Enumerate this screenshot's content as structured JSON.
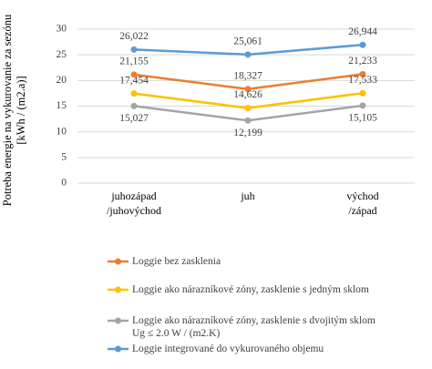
{
  "chart_data": {
    "type": "line",
    "y_axis_label": "Potreba energie na vykurovanie za sezónu\n[kWh / (m2.a)]",
    "categories": [
      "juhozápad\n/juhovýchod",
      "juh",
      "východ\n/západ"
    ],
    "ylim": [
      0,
      30
    ],
    "yticks": [
      0,
      5,
      10,
      15,
      20,
      25,
      30
    ],
    "grid": true,
    "series": [
      {
        "name": "Loggie bez zasklenia",
        "color": "#ED7D31",
        "values": [
          21.155,
          18.327,
          21.233
        ],
        "value_labels": [
          "21,155",
          "18,327",
          "21,233"
        ]
      },
      {
        "name": "Loggie ako nárazníkové zóny, zasklenie s jedným sklom",
        "color": "#FFC000",
        "values": [
          17.454,
          14.626,
          17.533
        ],
        "value_labels": [
          "17,454",
          "14,626",
          "17,533"
        ]
      },
      {
        "name": "Loggie ako nárazníkové zóny, zasklenie s dvojitým sklom Ug ≤ 2.0 W / (m2.K)",
        "color": "#A5A5A5",
        "values": [
          15.027,
          12.199,
          15.105
        ],
        "value_labels": [
          "15,027",
          "12,199",
          "15,105"
        ]
      },
      {
        "name": "Loggie integrované do vykurovaného objemu",
        "color": "#5B9BD5",
        "values": [
          26.022,
          25.061,
          26.944
        ],
        "value_labels": [
          "26,022",
          "25,061",
          "26,944"
        ]
      }
    ]
  }
}
